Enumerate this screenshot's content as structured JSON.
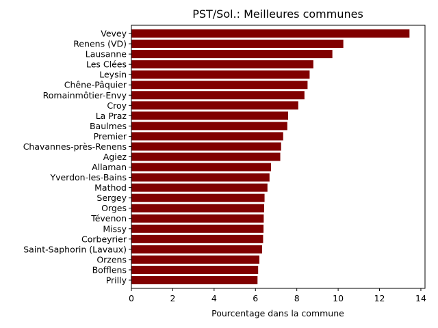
{
  "chart_data": {
    "type": "bar",
    "orientation": "horizontal",
    "title": "PST/Sol.: Meilleures communes",
    "xlabel": "Pourcentage dans la commune",
    "ylabel": "",
    "xlim": [
      0,
      14.2
    ],
    "xticks": [
      0,
      2,
      4,
      6,
      8,
      10,
      12,
      14
    ],
    "xtick_labels": [
      "0",
      "2",
      "4",
      "6",
      "8",
      "10",
      "12",
      "14"
    ],
    "bar_color": "#800000",
    "grid": false,
    "categories": [
      "Vevey",
      "Renens (VD)",
      "Lausanne",
      "Les Clées",
      "Leysin",
      "Chêne-Pâquier",
      "Romainmôtier-Envy",
      "Croy",
      "La Praz",
      "Baulmes",
      "Premier",
      "Chavannes-près-Renens",
      "Agiez",
      "Allaman",
      "Yverdon-les-Bains",
      "Mathod",
      "Sergey",
      "Orges",
      "Tévenon",
      "Missy",
      "Corbeyrier",
      "Saint-Saphorin (Lavaux)",
      "Orzens",
      "Bofflens",
      "Prilly"
    ],
    "values": [
      13.45,
      10.25,
      9.72,
      8.8,
      8.62,
      8.52,
      8.37,
      8.07,
      7.58,
      7.54,
      7.34,
      7.24,
      7.2,
      6.75,
      6.68,
      6.58,
      6.44,
      6.42,
      6.4,
      6.39,
      6.37,
      6.32,
      6.19,
      6.13,
      6.1
    ]
  }
}
